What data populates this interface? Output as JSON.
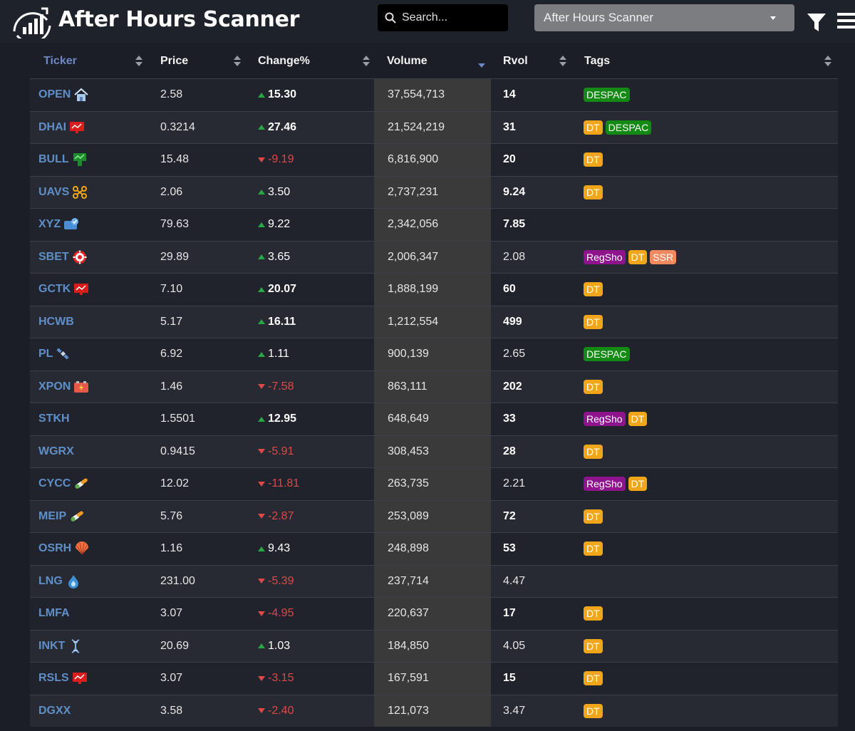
{
  "app": {
    "title": "After Hours Scanner",
    "search_placeholder": "Search...",
    "scanner_select": "After Hours Scanner"
  },
  "colors": {
    "ticker": "#5f8fc9",
    "up": "#27a845",
    "down": "#e04848",
    "tag_DESPAC": "#138a13",
    "tag_DT": "#f0a618",
    "tag_RegSho": "#8e148e",
    "tag_SSR": "#f08860"
  },
  "table": {
    "columns": {
      "ticker": "Ticker",
      "price": "Price",
      "change": "Change%",
      "volume": "Volume",
      "rvol": "Rvol",
      "tags": "Tags"
    },
    "sort": {
      "column": "volume",
      "direction": "desc"
    },
    "rows": [
      {
        "ticker": "OPEN",
        "icon": "house-icon",
        "price": "2.58",
        "change": "15.30",
        "dir": "up",
        "change_bold": true,
        "volume": "37,554,713",
        "rvol": "14",
        "rvol_bold": true,
        "tags": [
          "DESPAC"
        ]
      },
      {
        "ticker": "DHAI",
        "icon": "monitor-chart-icon",
        "price": "0.3214",
        "change": "27.46",
        "dir": "up",
        "change_bold": true,
        "volume": "21,524,219",
        "rvol": "31",
        "rvol_bold": true,
        "tags": [
          "DT",
          "DESPAC"
        ]
      },
      {
        "ticker": "BULL",
        "icon": "stock-board-icon",
        "price": "15.48",
        "change": "-9.19",
        "dir": "down",
        "change_bold": false,
        "volume": "6,816,900",
        "rvol": "20",
        "rvol_bold": true,
        "tags": [
          "DT"
        ]
      },
      {
        "ticker": "UAVS",
        "icon": "drone-icon",
        "price": "2.06",
        "change": "3.50",
        "dir": "up",
        "change_bold": false,
        "volume": "2,737,231",
        "rvol": "9.24",
        "rvol_bold": true,
        "tags": [
          "DT"
        ]
      },
      {
        "ticker": "XYZ",
        "icon": "payment-card-icon",
        "price": "79.63",
        "change": "9.22",
        "dir": "up",
        "change_bold": false,
        "volume": "2,342,056",
        "rvol": "7.85",
        "rvol_bold": true,
        "tags": []
      },
      {
        "ticker": "SBET",
        "icon": "casino-chip-icon",
        "price": "29.89",
        "change": "3.65",
        "dir": "up",
        "change_bold": false,
        "volume": "2,006,347",
        "rvol": "2.08",
        "rvol_bold": false,
        "tags": [
          "RegSho",
          "DT",
          "SSR"
        ]
      },
      {
        "ticker": "GCTK",
        "icon": "monitor-chart-icon",
        "price": "7.10",
        "change": "20.07",
        "dir": "up",
        "change_bold": true,
        "volume": "1,888,199",
        "rvol": "60",
        "rvol_bold": true,
        "tags": [
          "DT"
        ]
      },
      {
        "ticker": "HCWB",
        "icon": "",
        "price": "5.17",
        "change": "16.11",
        "dir": "up",
        "change_bold": true,
        "volume": "1,212,554",
        "rvol": "499",
        "rvol_bold": true,
        "tags": [
          "DT"
        ]
      },
      {
        "ticker": "PL",
        "icon": "satellite-icon",
        "price": "6.92",
        "change": "1.11",
        "dir": "up",
        "change_bold": false,
        "volume": "900,139",
        "rvol": "2.65",
        "rvol_bold": false,
        "tags": [
          "DESPAC"
        ]
      },
      {
        "ticker": "XPON",
        "icon": "battery-icon",
        "price": "1.46",
        "change": "-7.58",
        "dir": "down",
        "change_bold": false,
        "volume": "863,111",
        "rvol": "202",
        "rvol_bold": true,
        "tags": [
          "DT"
        ]
      },
      {
        "ticker": "STKH",
        "icon": "",
        "price": "1.5501",
        "change": "12.95",
        "dir": "up",
        "change_bold": true,
        "volume": "648,649",
        "rvol": "33",
        "rvol_bold": true,
        "tags": [
          "RegSho",
          "DT"
        ]
      },
      {
        "ticker": "WGRX",
        "icon": "",
        "price": "0.9415",
        "change": "-5.91",
        "dir": "down",
        "change_bold": false,
        "volume": "308,453",
        "rvol": "28",
        "rvol_bold": true,
        "tags": [
          "DT"
        ]
      },
      {
        "ticker": "CYCC",
        "icon": "pills-icon",
        "price": "12.02",
        "change": "-11.81",
        "dir": "down",
        "change_bold": false,
        "volume": "263,735",
        "rvol": "2.21",
        "rvol_bold": false,
        "tags": [
          "RegSho",
          "DT"
        ]
      },
      {
        "ticker": "MEIP",
        "icon": "pills-icon",
        "price": "5.76",
        "change": "-2.87",
        "dir": "down",
        "change_bold": false,
        "volume": "253,089",
        "rvol": "72",
        "rvol_bold": true,
        "tags": [
          "DT"
        ]
      },
      {
        "ticker": "OSRH",
        "icon": "shell-icon",
        "price": "1.16",
        "change": "9.43",
        "dir": "up",
        "change_bold": false,
        "volume": "248,898",
        "rvol": "53",
        "rvol_bold": true,
        "tags": [
          "DT"
        ]
      },
      {
        "ticker": "LNG",
        "icon": "flame-icon",
        "price": "231.00",
        "change": "-5.39",
        "dir": "down",
        "change_bold": false,
        "volume": "237,714",
        "rvol": "4.47",
        "rvol_bold": false,
        "tags": []
      },
      {
        "ticker": "LMFA",
        "icon": "",
        "price": "3.07",
        "change": "-4.95",
        "dir": "down",
        "change_bold": false,
        "volume": "220,637",
        "rvol": "17",
        "rvol_bold": true,
        "tags": [
          "DT"
        ]
      },
      {
        "ticker": "INKT",
        "icon": "dna-icon",
        "price": "20.69",
        "change": "1.03",
        "dir": "up",
        "change_bold": false,
        "volume": "184,850",
        "rvol": "4.05",
        "rvol_bold": false,
        "tags": [
          "DT"
        ]
      },
      {
        "ticker": "RSLS",
        "icon": "monitor-chart-icon",
        "price": "3.07",
        "change": "-3.15",
        "dir": "down",
        "change_bold": false,
        "volume": "167,591",
        "rvol": "15",
        "rvol_bold": true,
        "tags": [
          "DT"
        ]
      },
      {
        "ticker": "DGXX",
        "icon": "",
        "price": "3.58",
        "change": "-2.40",
        "dir": "down",
        "change_bold": false,
        "volume": "121,073",
        "rvol": "3.47",
        "rvol_bold": false,
        "tags": [
          "DT"
        ]
      }
    ]
  }
}
